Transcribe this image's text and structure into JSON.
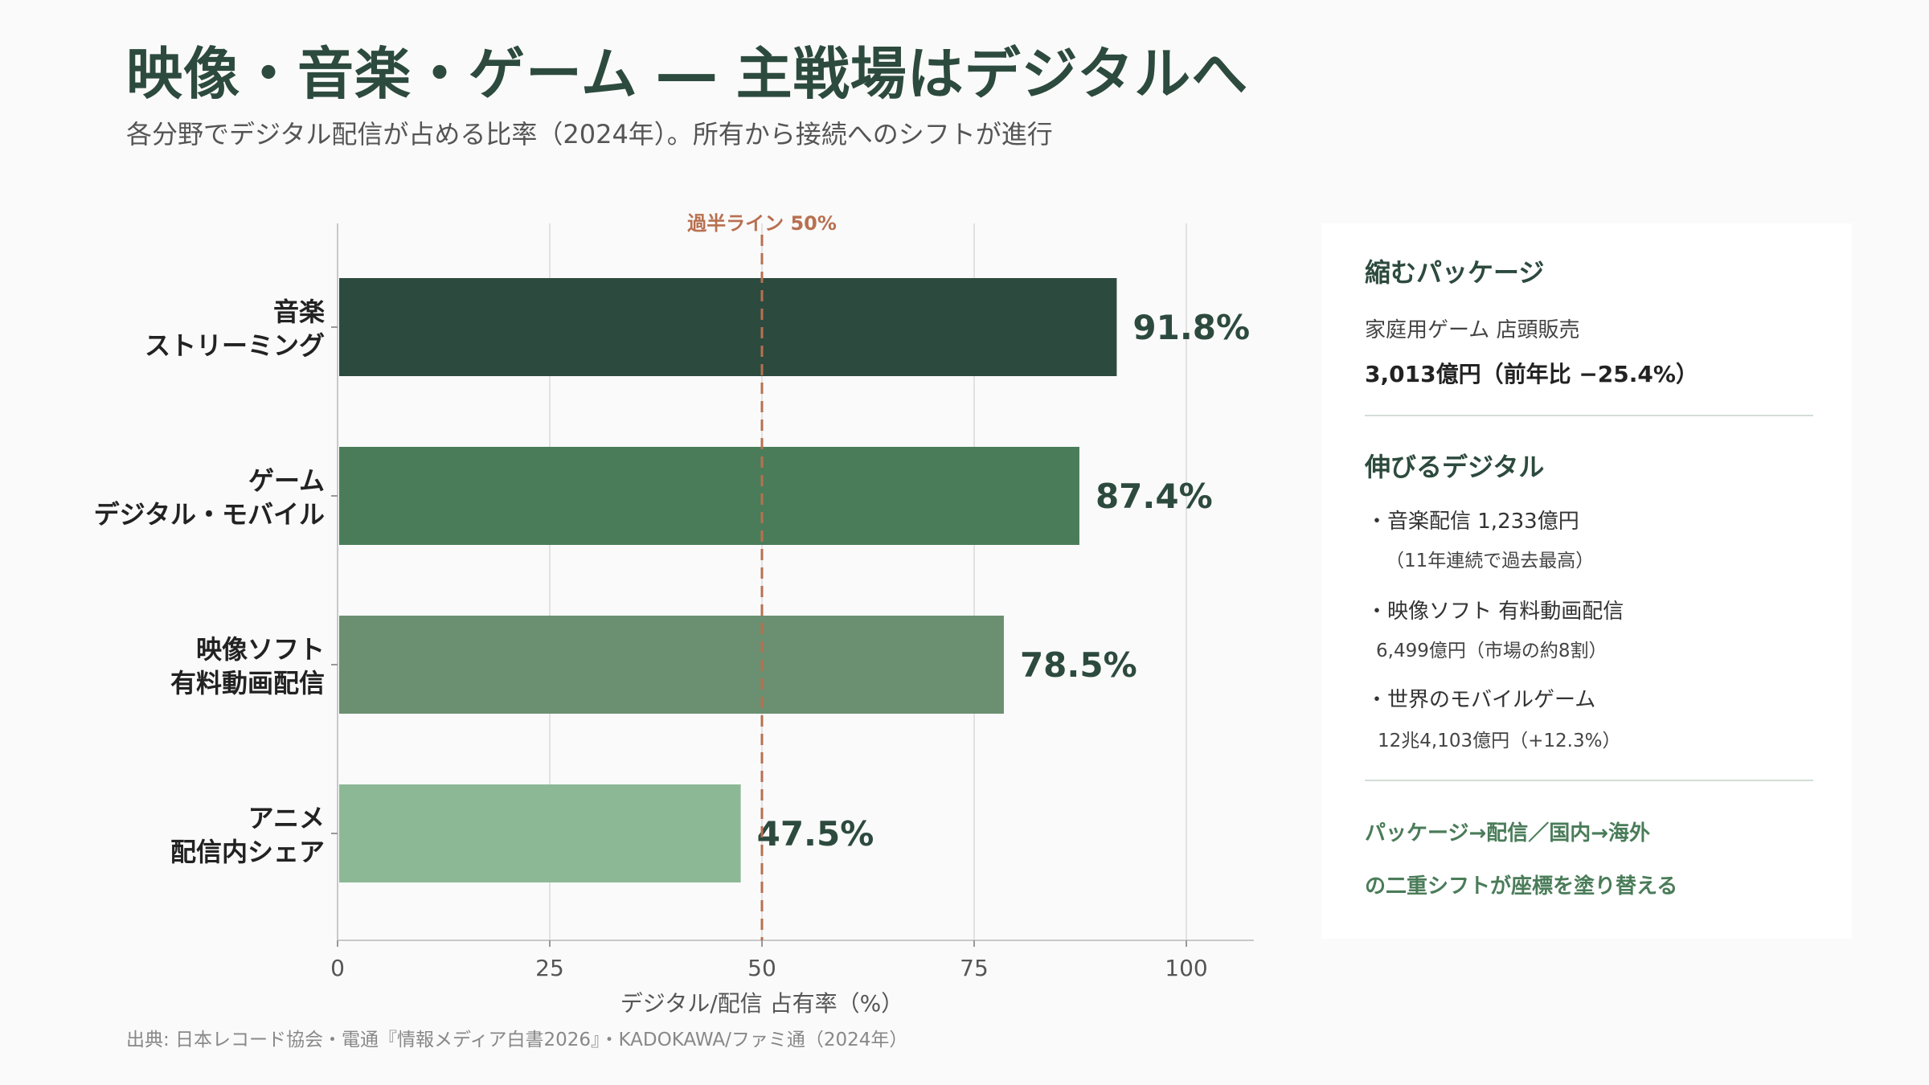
{
  "title": "映像・音楽・ゲーム ― 主戦場はデジタルへ",
  "subtitle": "各分野でデジタル配信が占める比率（2024年）。所有から接続へのシフトが進行",
  "chart_data": {
    "type": "bar",
    "orientation": "horizontal",
    "categories": [
      [
        "音楽",
        "ストリーミング"
      ],
      [
        "ゲーム",
        "デジタル・モバイル"
      ],
      [
        "映像ソフト",
        "有料動画配信"
      ],
      [
        "アニメ",
        "配信内シェア"
      ]
    ],
    "values": [
      91.8,
      87.4,
      78.5,
      47.5
    ],
    "value_labels": [
      "91.8%",
      "87.4%",
      "78.5%",
      "47.5%"
    ],
    "colors": [
      "#2d4a3e",
      "#4a7c59",
      "#6b8f71",
      "#8db896"
    ],
    "xlim": [
      0,
      100
    ],
    "xticks": [
      0,
      25,
      50,
      75,
      100
    ],
    "xlabel": "デジタル/配信 占有率（%）",
    "grid": true,
    "reference_line": {
      "value": 50,
      "label": "過半ライン 50%",
      "color": "#b87050"
    }
  },
  "panel": {
    "section1_title": "縮むパッケージ",
    "section1_label": "家庭用ゲーム 店頭販売",
    "section1_value": "3,013億円（前年比 −25.4%）",
    "section2_title": "伸びるデジタル",
    "items": [
      {
        "main": "・音楽配信 1,233億円",
        "sub": "（11年連続で過去最高）"
      },
      {
        "main": "・映像ソフト 有料動画配信",
        "sub": "6,499億円（市場の約8割）"
      },
      {
        "main": "・世界のモバイルゲーム",
        "sub": "12兆4,103億円（+12.3%）"
      }
    ],
    "conclusion_line1": "パッケージ→配信／国内→海外",
    "conclusion_line2": "の二重シフトが座標を塗り替える"
  },
  "source": "出典: 日本レコード協会・電通『情報メディア白書2026』・KADOKAWA/ファミ通（2024年）"
}
